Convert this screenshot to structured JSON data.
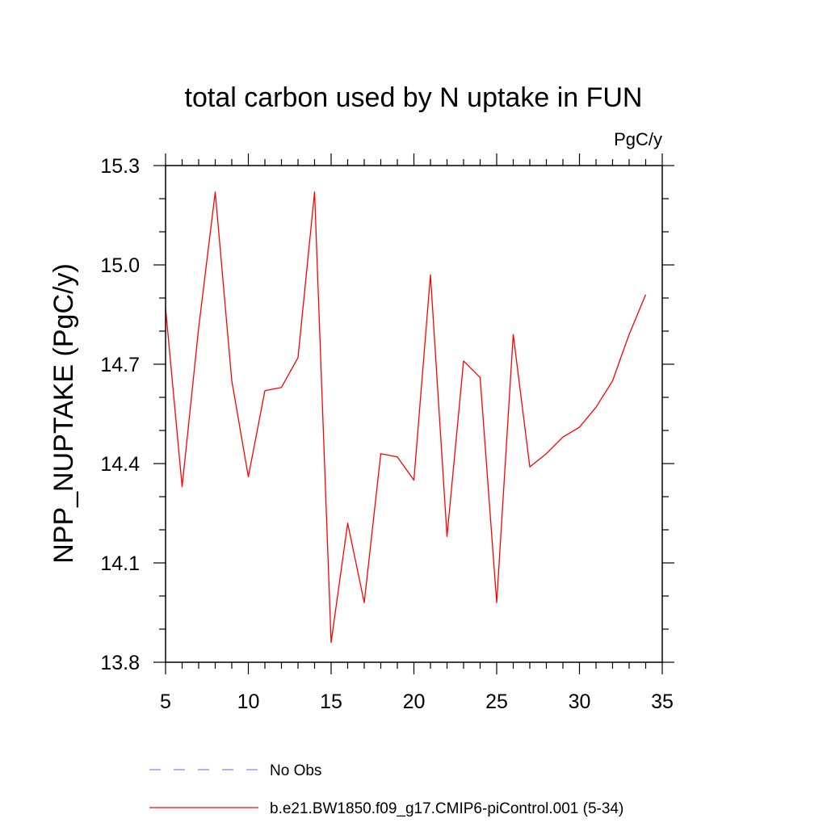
{
  "chart_data": {
    "type": "line",
    "title": "total carbon used by N uptake in FUN",
    "units": "PgC/y",
    "ylabel": "NPP_NUPTAKE  (PgC/y)",
    "xlabel": "",
    "xlim": [
      5,
      35
    ],
    "ylim": [
      13.8,
      15.3
    ],
    "x_ticks": [
      5,
      10,
      15,
      20,
      25,
      30,
      35
    ],
    "x_tick_labels": [
      "5",
      "10",
      "15",
      "20",
      "25",
      "30",
      "35"
    ],
    "y_ticks": [
      13.8,
      14.1,
      14.4,
      14.7,
      15.0,
      15.3
    ],
    "y_tick_labels": [
      "13.8",
      "14.1",
      "14.4",
      "14.7",
      "15.0",
      "15.3"
    ],
    "grid": false,
    "legend_position": "bottom",
    "series": [
      {
        "name": "b.e21.BW1850.f09_g17.CMIP6-piControl.001 (5-34)",
        "color": "#ff0000",
        "dash": "solid",
        "x": [
          5,
          6,
          7,
          8,
          9,
          10,
          11,
          12,
          13,
          14,
          15,
          16,
          17,
          18,
          19,
          20,
          21,
          22,
          23,
          24,
          25,
          26,
          27,
          28,
          29,
          30,
          31,
          32,
          33,
          34
        ],
        "values": [
          14.87,
          14.33,
          14.81,
          15.22,
          14.65,
          14.36,
          14.62,
          14.63,
          14.72,
          15.22,
          13.86,
          14.22,
          13.98,
          14.43,
          14.42,
          14.35,
          14.97,
          14.18,
          14.71,
          14.66,
          13.98,
          14.79,
          14.39,
          14.43,
          14.48,
          14.51,
          14.57,
          14.65,
          14.79,
          14.91
        ]
      }
    ],
    "legend": [
      {
        "label": "No Obs",
        "color": "#8080ff",
        "dash": "dashed"
      },
      {
        "label": "b.e21.BW1850.f09_g17.CMIP6-piControl.001 (5-34)",
        "color": "#ff0000",
        "dash": "solid"
      }
    ]
  }
}
